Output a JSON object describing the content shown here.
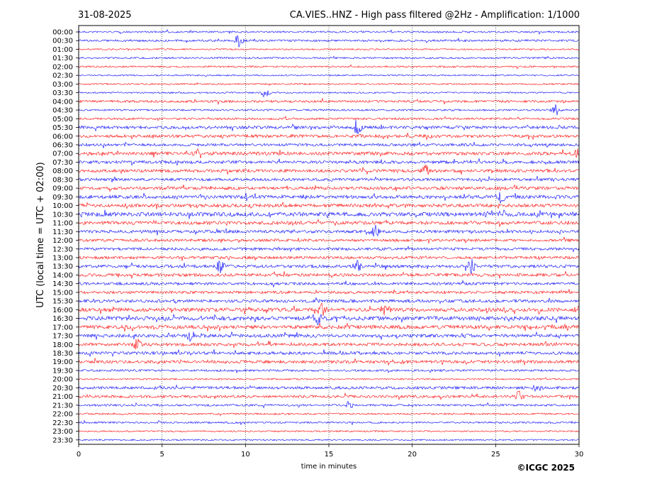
{
  "header": {
    "date": "31-08-2025",
    "title": "CA.VIES..HNZ - High pass filtered @2Hz - Amplification: 1/1000"
  },
  "footer": {
    "copyright": "©ICGC 2025"
  },
  "chart_data": {
    "type": "line",
    "title": "CA.VIES..HNZ - High pass filtered @2Hz - Amplification: 1/1000",
    "xlabel": "time in minutes",
    "ylabel": "UTC (local time = UTC + 02:00)",
    "xlim": [
      0,
      30
    ],
    "xticks": [
      0,
      5,
      10,
      15,
      20,
      25,
      30
    ],
    "grid": "vertical dotted at every 5 minutes",
    "colors": {
      "line_a": "#0000ff",
      "line_b": "#ff0000"
    },
    "rows": [
      "00:00",
      "00:30",
      "01:00",
      "01:30",
      "02:00",
      "02:30",
      "03:00",
      "03:30",
      "04:00",
      "04:30",
      "05:00",
      "05:30",
      "06:00",
      "06:30",
      "07:00",
      "07:30",
      "08:00",
      "08:30",
      "09:00",
      "09:30",
      "10:00",
      "10:30",
      "11:00",
      "11:30",
      "12:00",
      "12:30",
      "13:00",
      "13:30",
      "14:00",
      "14:30",
      "15:00",
      "15:30",
      "16:00",
      "16:30",
      "17:00",
      "17:30",
      "18:00",
      "18:30",
      "19:00",
      "19:30",
      "20:00",
      "20:30",
      "21:00",
      "21:30",
      "22:00",
      "22:30",
      "23:00",
      "23:30"
    ],
    "row_colors": [
      "blue",
      "blue",
      "red",
      "blue",
      "red",
      "blue",
      "red",
      "blue",
      "red",
      "blue",
      "red",
      "blue",
      "red",
      "blue",
      "red",
      "blue",
      "red",
      "blue",
      "red",
      "blue",
      "red",
      "blue",
      "red",
      "blue",
      "red",
      "blue",
      "red",
      "blue",
      "red",
      "blue",
      "red",
      "blue",
      "red",
      "blue",
      "red",
      "blue",
      "red",
      "blue",
      "red",
      "blue",
      "red",
      "blue",
      "red",
      "blue",
      "red",
      "blue",
      "red",
      "blue"
    ],
    "activity": [
      0.2,
      0.3,
      0.1,
      0.2,
      0.2,
      0.1,
      0.1,
      0.1,
      0.4,
      0.2,
      0.3,
      0.6,
      0.6,
      0.5,
      0.7,
      0.6,
      0.6,
      0.5,
      0.6,
      0.7,
      0.7,
      0.9,
      0.7,
      0.6,
      0.5,
      0.5,
      0.5,
      0.6,
      0.6,
      0.5,
      0.5,
      0.6,
      0.8,
      0.9,
      0.8,
      0.7,
      0.6,
      0.6,
      0.6,
      0.3,
      0.1,
      0.5,
      0.5,
      0.3,
      0.2,
      0.2,
      0.1,
      0.1
    ],
    "events": [
      {
        "row": 1,
        "x": 9.6,
        "amp": 1.2
      },
      {
        "row": 7,
        "x": 11.2,
        "amp": 1.0
      },
      {
        "row": 9,
        "x": 28.6,
        "amp": 1.0
      },
      {
        "row": 11,
        "x": 16.7,
        "amp": 1.1
      },
      {
        "row": 14,
        "x": 7.0,
        "amp": 1.0
      },
      {
        "row": 14,
        "x": 30.0,
        "amp": 0.9
      },
      {
        "row": 16,
        "x": 20.8,
        "amp": 1.0
      },
      {
        "row": 19,
        "x": 25.3,
        "amp": 1.0
      },
      {
        "row": 23,
        "x": 17.8,
        "amp": 1.0
      },
      {
        "row": 27,
        "x": 8.5,
        "amp": 1.2
      },
      {
        "row": 27,
        "x": 16.7,
        "amp": 1.1
      },
      {
        "row": 27,
        "x": 23.5,
        "amp": 1.3
      },
      {
        "row": 32,
        "x": 14.6,
        "amp": 1.2
      },
      {
        "row": 32,
        "x": 18.4,
        "amp": 1.2
      },
      {
        "row": 32,
        "x": 30.0,
        "amp": 1.0
      },
      {
        "row": 33,
        "x": 14.3,
        "amp": 1.2
      },
      {
        "row": 35,
        "x": 6.7,
        "amp": 1.0
      },
      {
        "row": 36,
        "x": 3.5,
        "amp": 1.0
      },
      {
        "row": 41,
        "x": 27.5,
        "amp": 0.6
      },
      {
        "row": 42,
        "x": 26.4,
        "amp": 0.9
      },
      {
        "row": 43,
        "x": 16.2,
        "amp": 0.6
      }
    ]
  }
}
